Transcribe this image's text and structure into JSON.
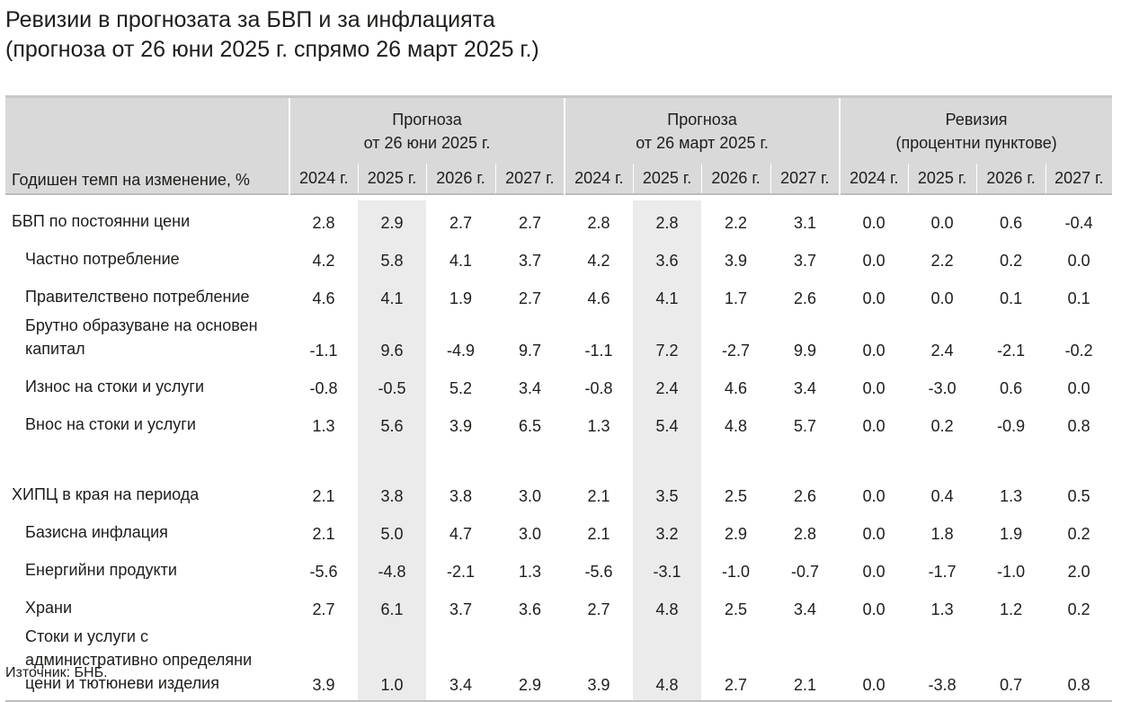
{
  "title": {
    "line1": "Ревизии в прогнозата за БВП и за инфлацията",
    "line2": "(прогноза от 26 юни 2025 г. спрямо 26 март 2025 г.)"
  },
  "table": {
    "row_header": "Годишен темп на изменение, %",
    "groups": [
      {
        "line1": "Прогноза",
        "line2": "от 26 юни 2025 г."
      },
      {
        "line1": "Прогноза",
        "line2": "от 26 март 2025 г."
      },
      {
        "line1": "Ревизия",
        "line2": "(процентни пунктове)"
      }
    ],
    "years": [
      "2024 г.",
      "2025 г.",
      "2026 г.",
      "2027 г."
    ]
  },
  "chart_data": {
    "type": "table",
    "title": "Ревизии в прогнозата за БВП и за инфлацията",
    "subtitle": "(прогноза от 26 юни 2025 г. спрямо 26 март 2025 г.)",
    "columns": [
      "Прогноза от 26 юни 2025 г. 2024 г.",
      "Прогноза от 26 юни 2025 г. 2025 г.",
      "Прогноза от 26 юни 2025 г. 2026 г.",
      "Прогноза от 26 юни 2025 г. 2027 г.",
      "Прогноза от 26 март 2025 г. 2024 г.",
      "Прогноза от 26 март 2025 г. 2025 г.",
      "Прогноза от 26 март 2025 г. 2026 г.",
      "Прогноза от 26 март 2025 г. 2027 г.",
      "Ревизия (процентни пунктове) 2024 г.",
      "Ревизия (процентни пунктове) 2025 г.",
      "Ревизия (процентни пунктове) 2026 г.",
      "Ревизия (процентни пунктове) 2027 г."
    ],
    "rows": [
      {
        "label": [
          "БВП по постоянни цени"
        ],
        "level": 0,
        "values": [
          "2.8",
          "2.9",
          "2.7",
          "2.7",
          "2.8",
          "2.8",
          "2.2",
          "3.1",
          "0.0",
          "0.0",
          "0.6",
          "-0.4"
        ]
      },
      {
        "label": [
          "Частно потребление"
        ],
        "level": 1,
        "values": [
          "4.2",
          "5.8",
          "4.1",
          "3.7",
          "4.2",
          "3.6",
          "3.9",
          "3.7",
          "0.0",
          "2.2",
          "0.2",
          "0.0"
        ]
      },
      {
        "label": [
          "Правителствено потребление"
        ],
        "level": 1,
        "values": [
          "4.6",
          "4.1",
          "1.9",
          "2.7",
          "4.6",
          "4.1",
          "1.7",
          "2.6",
          "0.0",
          "0.0",
          "0.1",
          "0.1"
        ]
      },
      {
        "label": [
          "Брутно образуване на основен",
          "капитал"
        ],
        "level": 1,
        "values": [
          "-1.1",
          "9.6",
          "-4.9",
          "9.7",
          "-1.1",
          "7.2",
          "-2.7",
          "9.9",
          "0.0",
          "2.4",
          "-2.1",
          "-0.2"
        ]
      },
      {
        "label": [
          "Износ на стоки и услуги"
        ],
        "level": 1,
        "values": [
          "-0.8",
          "-0.5",
          "5.2",
          "3.4",
          "-0.8",
          "2.4",
          "4.6",
          "3.4",
          "0.0",
          "-3.0",
          "0.6",
          "0.0"
        ]
      },
      {
        "label": [
          "Внос на стоки и услуги"
        ],
        "level": 1,
        "values": [
          "1.3",
          "5.6",
          "3.9",
          "6.5",
          "1.3",
          "5.4",
          "4.8",
          "5.7",
          "0.0",
          "0.2",
          "-0.9",
          "0.8"
        ]
      },
      {
        "spacer": true
      },
      {
        "label": [
          "ХИПЦ в края на периода"
        ],
        "level": 0,
        "values": [
          "2.1",
          "3.8",
          "3.8",
          "3.0",
          "2.1",
          "3.5",
          "2.5",
          "2.6",
          "0.0",
          "0.4",
          "1.3",
          "0.5"
        ]
      },
      {
        "label": [
          "Базисна инфлация"
        ],
        "level": 1,
        "values": [
          "2.1",
          "5.0",
          "4.7",
          "3.0",
          "2.1",
          "3.2",
          "2.9",
          "2.8",
          "0.0",
          "1.8",
          "1.9",
          "0.2"
        ]
      },
      {
        "label": [
          "Енергийни продукти"
        ],
        "level": 1,
        "values": [
          "-5.6",
          "-4.8",
          "-2.1",
          "1.3",
          "-5.6",
          "-3.1",
          "-1.0",
          "-0.7",
          "0.0",
          "-1.7",
          "-1.0",
          "2.0"
        ]
      },
      {
        "label": [
          "Храни"
        ],
        "level": 1,
        "values": [
          "2.7",
          "6.1",
          "3.7",
          "3.6",
          "2.7",
          "4.8",
          "2.5",
          "3.4",
          "0.0",
          "1.3",
          "1.2",
          "0.2"
        ]
      },
      {
        "label": [
          "Стоки и услуги с",
          "административно определяни",
          "цени и тютюневи изделия"
        ],
        "level": 1,
        "values": [
          "3.9",
          "1.0",
          "3.4",
          "2.9",
          "3.9",
          "4.8",
          "2.7",
          "2.1",
          "0.0",
          "-3.8",
          "0.7",
          "0.8"
        ]
      }
    ],
    "shaded_columns": [
      1,
      5
    ]
  },
  "source": "Източник: БНБ."
}
